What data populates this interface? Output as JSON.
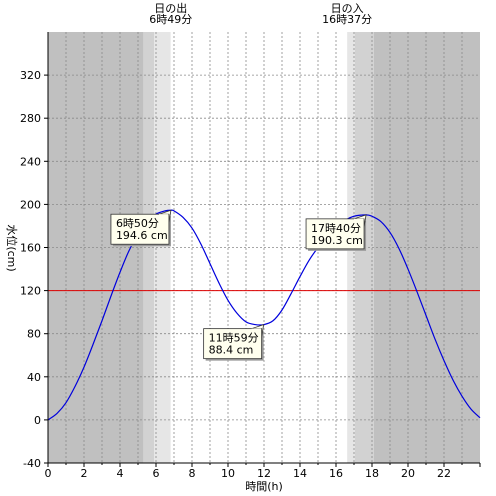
{
  "chart_data": {
    "type": "line",
    "xlabel": "時間(h)",
    "ylabel": "水位(cm)",
    "xlim": [
      0,
      24
    ],
    "ylim": [
      -40,
      360
    ],
    "x_ticks": [
      0,
      2,
      4,
      6,
      8,
      10,
      12,
      14,
      16,
      18,
      20,
      22
    ],
    "y_ticks": [
      -40,
      0,
      40,
      80,
      120,
      160,
      200,
      240,
      280,
      320
    ],
    "grid": true,
    "reference_line": {
      "y": 120,
      "color": "#dd0000"
    },
    "sunrise": {
      "title": "日の出",
      "time": "6時49分",
      "hour": 6.82
    },
    "sunset": {
      "title": "日の入",
      "time": "16時37分",
      "hour": 16.62
    },
    "twilight": {
      "morning_dark_end": 5.3,
      "morning_mid_end": 5.9,
      "evening_mid_start": 17.05,
      "evening_dark_start": 18.1
    },
    "colors": {
      "night": "#c0c0c0",
      "twilight_outer": "#d2d2d2",
      "twilight_inner": "#e6e6e6",
      "day": "#ffffff",
      "line": "#0000dd",
      "reference": "#dd0000",
      "callout_bg": "#ffffee"
    },
    "series": [
      {
        "x": [
          0,
          0.5,
          1,
          1.5,
          2,
          2.5,
          3,
          3.5,
          4,
          4.5,
          5,
          5.5,
          6,
          6.5,
          6.83,
          7,
          7.5,
          8,
          8.5,
          9,
          9.5,
          10,
          10.5,
          11,
          11.5,
          11.98,
          12.5,
          13,
          13.5,
          14,
          14.5,
          15,
          15.5,
          16,
          16.5,
          17,
          17.67,
          18,
          18.5,
          19,
          19.5,
          20,
          20.5,
          21,
          21.5,
          22,
          22.5,
          23,
          23.5,
          24
        ],
        "y": [
          0,
          6,
          16,
          31,
          49,
          70,
          92,
          115,
          137,
          157,
          172,
          184,
          191,
          194,
          194.6,
          194,
          188,
          178,
          163,
          145,
          127,
          111,
          99,
          91,
          88.5,
          88.4,
          92,
          102,
          117,
          133,
          148,
          160,
          170,
          178,
          185,
          189,
          190.3,
          189,
          184,
          174,
          159,
          140,
          119,
          97,
          75,
          55,
          37,
          22,
          10,
          2
        ]
      }
    ],
    "annotations": [
      {
        "x": 6.83,
        "y": 194.6,
        "time": "6時50分",
        "value": "194.6 cm",
        "side": "left"
      },
      {
        "x": 11.98,
        "y": 88.4,
        "time": "11時59分",
        "value": "88.4 cm",
        "side": "left"
      },
      {
        "x": 17.67,
        "y": 190.3,
        "time": "17時40分",
        "value": "190.3 cm",
        "side": "left"
      }
    ]
  }
}
